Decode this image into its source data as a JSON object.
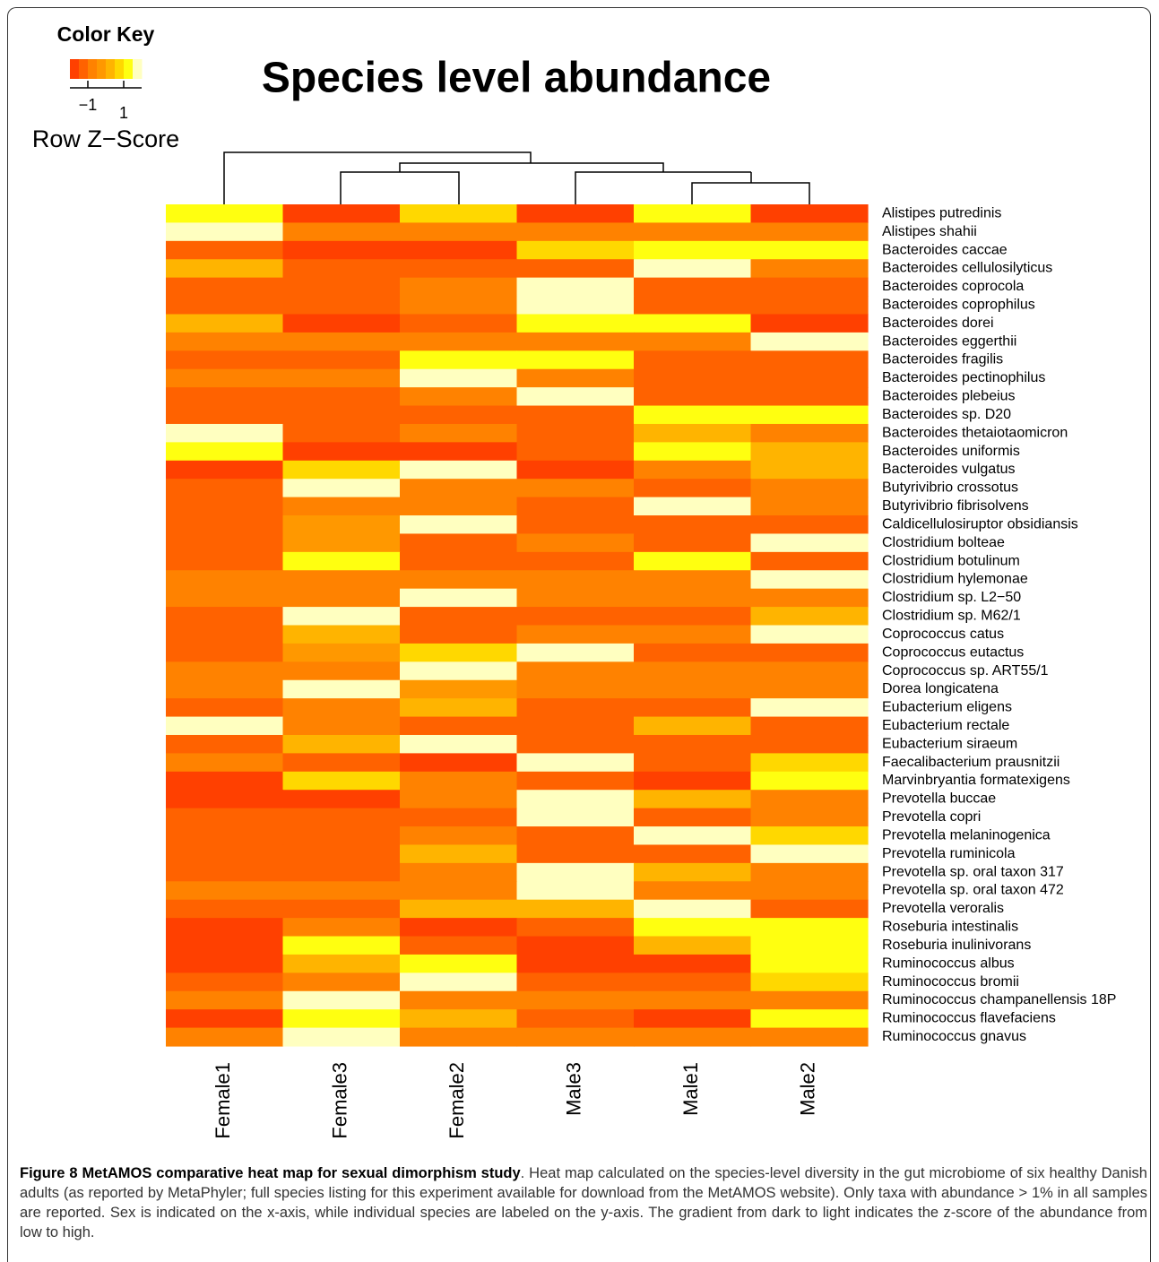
{
  "chart_data": {
    "type": "heatmap",
    "title": "Species level abundance",
    "key_title": "Color Key",
    "key_label": "Row Z−Score",
    "colors": [
      "#FF4000",
      "#FF6200",
      "#FF8200",
      "#FF9800",
      "#FFB400",
      "#FFD800",
      "#FFFF10",
      "#FFFFC0"
    ],
    "zlim": [
      -2,
      2
    ],
    "key_ticks": [
      {
        "value": -1,
        "label": "−1"
      },
      1
    ],
    "categories": [
      "Female1",
      "Female3",
      "Female2",
      "Male3",
      "Male1",
      "Male2"
    ],
    "rows": [
      "Alistipes putredinis",
      "Alistipes shahii",
      "Bacteroides caccae",
      "Bacteroides cellulosilyticus",
      "Bacteroides coprocola",
      "Bacteroides coprophilus",
      "Bacteroides dorei",
      "Bacteroides eggerthii",
      "Bacteroides fragilis",
      "Bacteroides pectinophilus",
      "Bacteroides plebeius",
      "Bacteroides sp. D20",
      "Bacteroides thetaiotaomicron",
      "Bacteroides uniformis",
      "Bacteroides vulgatus",
      "Butyrivibrio crossotus",
      "Butyrivibrio fibrisolvens",
      "Caldicellulosiruptor obsidiansis",
      "Clostridium bolteae",
      "Clostridium botulinum",
      "Clostridium hylemonae",
      "Clostridium sp. L2−50",
      "Clostridium sp. M62/1",
      "Coprococcus catus",
      "Coprococcus eutactus",
      "Coprococcus sp. ART55/1",
      "Dorea longicatena",
      "Eubacterium eligens",
      "Eubacterium rectale",
      "Eubacterium siraeum",
      "Faecalibacterium prausnitzii",
      "Marvinbryantia formatexigens",
      "Prevotella buccae",
      "Prevotella copri",
      "Prevotella melaninogenica",
      "Prevotella ruminicola",
      "Prevotella sp. oral taxon 317",
      "Prevotella sp. oral taxon 472",
      "Prevotella veroralis",
      "Roseburia intestinalis",
      "Roseburia inulinivorans",
      "Ruminococcus albus",
      "Ruminococcus bromii",
      "Ruminococcus champanellensis 18P",
      "Ruminococcus flavefaciens",
      "Ruminococcus gnavus"
    ],
    "values": [
      [
        1.25,
        -1.75,
        0.75,
        -1.75,
        1.25,
        -1.75
      ],
      [
        1.75,
        -0.75,
        -0.75,
        -0.75,
        -0.75,
        -0.75
      ],
      [
        -1.25,
        -1.75,
        -1.75,
        0.75,
        1.25,
        1.25
      ],
      [
        0.25,
        -1.25,
        -1.25,
        -1.25,
        1.75,
        -0.75
      ],
      [
        -1.25,
        -1.25,
        -0.75,
        1.75,
        -1.25,
        -1.25
      ],
      [
        -1.25,
        -1.25,
        -0.75,
        1.75,
        -1.25,
        -1.25
      ],
      [
        0.25,
        -1.75,
        -1.25,
        1.25,
        1.25,
        -1.75
      ],
      [
        -0.75,
        -0.75,
        -0.75,
        -0.75,
        -0.75,
        1.75
      ],
      [
        -1.25,
        -1.25,
        1.25,
        1.25,
        -1.25,
        -1.25
      ],
      [
        -0.75,
        -0.75,
        1.75,
        -0.75,
        -1.25,
        -1.25
      ],
      [
        -1.25,
        -1.25,
        -0.75,
        1.75,
        -1.25,
        -1.25
      ],
      [
        -1.25,
        -1.25,
        -1.25,
        -1.25,
        1.25,
        1.25
      ],
      [
        1.75,
        -1.25,
        -0.75,
        -1.25,
        0.25,
        -0.75
      ],
      [
        1.25,
        -1.75,
        -1.75,
        -1.25,
        1.25,
        0.25
      ],
      [
        -1.75,
        0.75,
        1.75,
        -1.75,
        -0.75,
        0.25
      ],
      [
        -1.25,
        1.75,
        -0.75,
        -0.75,
        -1.25,
        -0.75
      ],
      [
        -1.25,
        -0.75,
        -0.75,
        -1.25,
        1.75,
        -0.75
      ],
      [
        -1.25,
        -0.25,
        1.75,
        -1.25,
        -1.25,
        -1.25
      ],
      [
        -1.25,
        -0.25,
        -1.25,
        -0.75,
        -1.25,
        1.75
      ],
      [
        -1.25,
        1.25,
        -1.25,
        -1.25,
        1.25,
        -1.25
      ],
      [
        -0.75,
        -0.75,
        -0.75,
        -0.75,
        -0.75,
        1.75
      ],
      [
        -0.75,
        -0.75,
        1.75,
        -0.75,
        -0.75,
        -0.75
      ],
      [
        -1.25,
        1.75,
        -1.25,
        -1.25,
        -1.25,
        0.25
      ],
      [
        -1.25,
        0.25,
        -1.25,
        -0.75,
        -0.75,
        1.75
      ],
      [
        -1.25,
        -0.25,
        0.75,
        1.75,
        -1.25,
        -1.25
      ],
      [
        -0.75,
        -0.75,
        1.75,
        -0.75,
        -0.75,
        -0.75
      ],
      [
        -0.75,
        1.75,
        -0.25,
        -0.75,
        -0.75,
        -0.75
      ],
      [
        -1.25,
        -0.75,
        0.25,
        -1.25,
        -1.25,
        1.75
      ],
      [
        1.75,
        -0.75,
        -1.25,
        -1.25,
        0.25,
        -1.25
      ],
      [
        -1.25,
        0.25,
        1.75,
        -1.25,
        -1.25,
        -1.25
      ],
      [
        -0.75,
        -1.25,
        -1.75,
        1.75,
        -1.25,
        0.75
      ],
      [
        -1.75,
        0.75,
        -0.75,
        -1.25,
        -1.75,
        1.25
      ],
      [
        -1.75,
        -1.75,
        -0.75,
        1.75,
        0.25,
        -0.75
      ],
      [
        -1.25,
        -1.25,
        -1.25,
        1.75,
        -1.25,
        -0.75
      ],
      [
        -1.25,
        -1.25,
        -0.75,
        -1.25,
        1.75,
        0.75
      ],
      [
        -1.25,
        -1.25,
        0.25,
        -1.25,
        -1.25,
        1.75
      ],
      [
        -1.25,
        -1.25,
        -0.75,
        1.75,
        0.25,
        -0.75
      ],
      [
        -0.75,
        -0.75,
        -0.75,
        1.75,
        -0.75,
        -0.75
      ],
      [
        -1.25,
        -1.25,
        0.25,
        0.25,
        1.75,
        -1.25
      ],
      [
        -1.75,
        -0.75,
        -1.75,
        -1.25,
        1.25,
        1.25
      ],
      [
        -1.75,
        1.25,
        -1.25,
        -1.75,
        0.25,
        1.25
      ],
      [
        -1.75,
        0.25,
        1.25,
        -1.75,
        -1.75,
        1.25
      ],
      [
        -1.25,
        -0.75,
        1.75,
        -1.25,
        -1.25,
        0.75
      ],
      [
        -0.75,
        1.75,
        -0.75,
        -0.75,
        -0.75,
        -0.75
      ],
      [
        -1.75,
        1.25,
        0.25,
        -1.25,
        -1.75,
        1.25
      ],
      [
        -0.75,
        1.75,
        -0.75,
        -0.75,
        -0.75,
        -0.75
      ]
    ]
  },
  "caption": {
    "label": "Figure 8 MetAMOS comparative heat map for sexual dimorphism study",
    "text": ". Heat map calculated on the species-level diversity in the gut microbiome of six healthy Danish adults (as reported by MetaPhyler; full species listing for this experiment available for download from the MetAMOS website). Only taxa with abundance > 1% in all samples are reported. Sex is indicated on the x-axis, while individual species are labeled on the y-axis. The gradient from dark to light indicates the z-score of the abundance from low to high."
  }
}
